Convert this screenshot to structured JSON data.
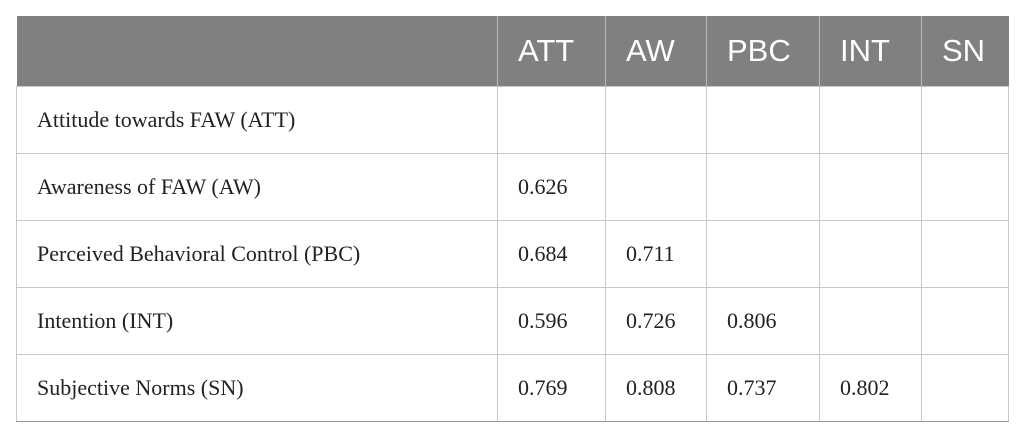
{
  "table": {
    "header": [
      "ATT",
      "AW",
      "PBC",
      "INT",
      "SN"
    ],
    "rows": [
      {
        "label": "Attitude towards FAW (ATT)",
        "values": []
      },
      {
        "label": "Awareness of FAW (AW)",
        "values": [
          0.626
        ]
      },
      {
        "label": "Perceived Behavioral Control (PBC)",
        "values": [
          0.684,
          0.711
        ]
      },
      {
        "label": "Intention (INT)",
        "values": [
          0.596,
          0.726,
          0.806
        ]
      },
      {
        "label": "Subjective Norms (SN)",
        "values": [
          0.769,
          0.808,
          0.737,
          0.802
        ]
      }
    ]
  }
}
